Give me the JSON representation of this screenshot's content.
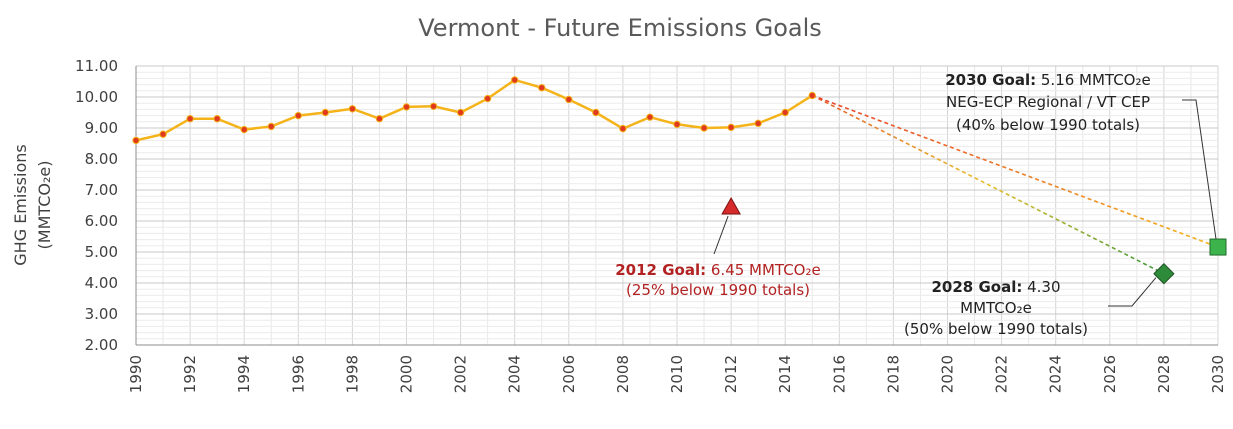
{
  "chart_data": {
    "type": "line",
    "title": "Vermont - Future Emissions Goals",
    "xlabel": "",
    "ylabel": "GHG Emissions (MMTCO₂e)",
    "ylabel_line1": "GHG Emissions",
    "ylabel_line2": "(MMTCO₂e)",
    "xlim": [
      1990,
      2030
    ],
    "ylim": [
      2.0,
      11.0
    ],
    "x_ticks": [
      1990,
      1992,
      1994,
      1996,
      1998,
      2000,
      2002,
      2004,
      2006,
      2008,
      2010,
      2012,
      2014,
      2016,
      2018,
      2020,
      2022,
      2024,
      2026,
      2028,
      2030
    ],
    "y_ticks": [
      "2.00",
      "3.00",
      "4.00",
      "5.00",
      "6.00",
      "7.00",
      "8.00",
      "9.00",
      "10.00",
      "11.00"
    ],
    "grid": true,
    "series": [
      {
        "x": [
          1990,
          1991,
          1992,
          1993,
          1994,
          1995,
          1996,
          1997,
          1998,
          1999,
          2000,
          2001,
          2002,
          2003,
          2004,
          2005,
          2006,
          2007,
          2008,
          2009,
          2010,
          2011,
          2012,
          2013,
          2014,
          2015
        ],
        "values": [
          8.6,
          8.8,
          9.3,
          9.3,
          8.95,
          9.05,
          9.4,
          9.5,
          9.62,
          9.3,
          9.68,
          9.7,
          9.5,
          9.95,
          10.55,
          10.3,
          9.92,
          9.5,
          8.98,
          9.35,
          9.12,
          9.0,
          9.02,
          9.15,
          9.5,
          10.05
        ],
        "color": "#f5b31a",
        "marker_color": "#e03a1e"
      }
    ],
    "goals": [
      {
        "year": 2012,
        "value": 6.45,
        "marker": "triangle",
        "color": "#d62b2b",
        "label_bold": "2012 Goal:",
        "label_rest": " 6.45 MMTCO₂e",
        "label_line2": "(25% below 1990 totals)"
      },
      {
        "year": 2028,
        "value": 4.3,
        "marker": "diamond",
        "color": "#2e8b3a",
        "label_bold": "2028 Goal:",
        "label_rest": " 4.30",
        "label_line2": "MMTCO₂e",
        "label_line3": "(50% below 1990 totals)"
      },
      {
        "year": 2030,
        "value": 5.16,
        "marker": "square",
        "color": "#3cb44b",
        "label_bold": "2030 Goal:",
        "label_rest": " 5.16 MMTCO₂e",
        "label_line2": "NEG-ECP Regional / VT CEP",
        "label_line3": "(40% below 1990 totals)"
      }
    ],
    "projection_start": {
      "year": 2015,
      "value": 10.05
    }
  }
}
